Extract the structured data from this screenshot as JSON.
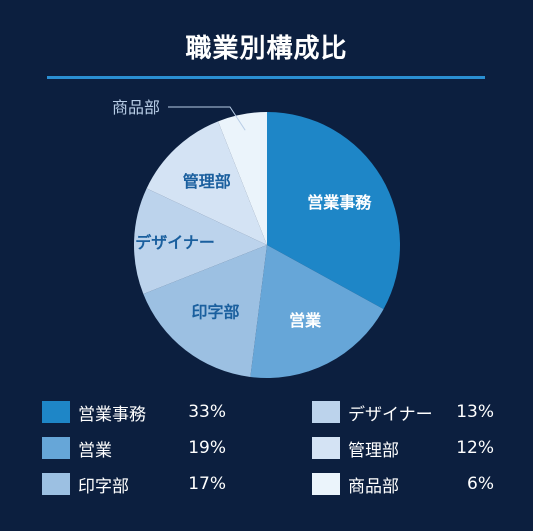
{
  "chart_data": {
    "type": "pie",
    "title": "職業別構成比",
    "slices": [
      {
        "label": "営業事務",
        "value": 33,
        "pct_label": "33%",
        "color": "#1e86c7",
        "label_color": "#ffffff"
      },
      {
        "label": "営業",
        "value": 19,
        "pct_label": "19%",
        "color": "#66a6d8",
        "label_color": "#ffffff"
      },
      {
        "label": "印字部",
        "value": 17,
        "pct_label": "17%",
        "color": "#9cc0e2",
        "label_color": "#1a5f9e"
      },
      {
        "label": "デザイナー",
        "value": 13,
        "pct_label": "13%",
        "color": "#bcd3ec",
        "label_color": "#1a5f9e"
      },
      {
        "label": "管理部",
        "value": 12,
        "pct_label": "12%",
        "color": "#d4e3f4",
        "label_color": "#1a5f9e"
      },
      {
        "label": "商品部",
        "value": 6,
        "pct_label": "6%",
        "color": "#ebf4fb",
        "label_color": "#b8cde6"
      }
    ]
  }
}
